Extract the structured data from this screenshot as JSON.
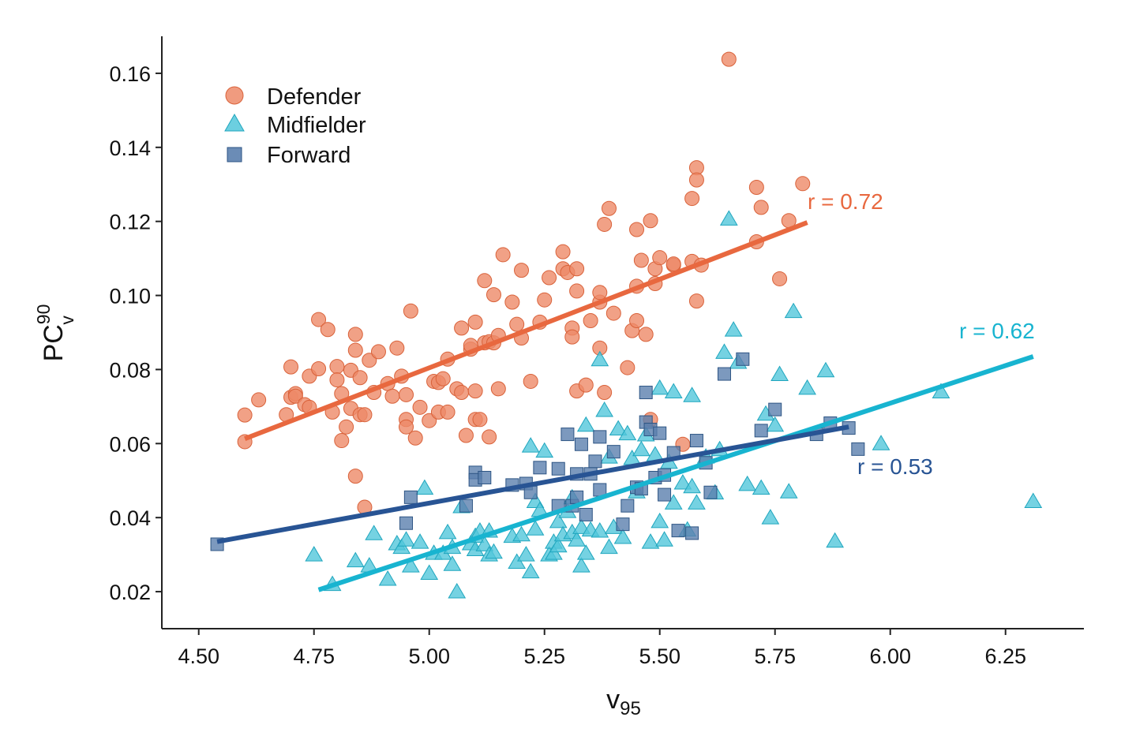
{
  "chart_data": {
    "type": "scatter",
    "title": "",
    "xlabel": "v",
    "xlabel_sub": "95",
    "ylabel": "PC",
    "ylabel_sup": "90",
    "ylabel_sub": "v",
    "xlim": [
      4.42,
      6.42
    ],
    "ylim": [
      0.01,
      0.17
    ],
    "xticks": [
      4.5,
      4.75,
      5.0,
      5.25,
      5.5,
      5.75,
      6.0,
      6.25
    ],
    "xtick_labels": [
      "4.50",
      "4.75",
      "5.00",
      "5.25",
      "5.50",
      "5.75",
      "6.00",
      "6.25"
    ],
    "yticks": [
      0.02,
      0.04,
      0.06,
      0.08,
      0.1,
      0.12,
      0.14,
      0.16
    ],
    "ytick_labels": [
      "0.02",
      "0.04",
      "0.06",
      "0.08",
      "0.10",
      "0.12",
      "0.14",
      "0.16"
    ],
    "grid": false,
    "legend_position": "top-left",
    "series": [
      {
        "name": "Defender",
        "marker": "circle",
        "color": "#ED8A68",
        "line_color": "#E8683F",
        "r_label": "r = 0.72",
        "fit": [
          [
            4.6,
            0.0613
          ],
          [
            5.82,
            0.1197
          ]
        ],
        "points": [
          [
            4.6,
            0.0605
          ],
          [
            4.6,
            0.0677
          ],
          [
            4.63,
            0.0718
          ],
          [
            4.69,
            0.0678
          ],
          [
            4.7,
            0.0725
          ],
          [
            4.7,
            0.0807
          ],
          [
            4.71,
            0.0735
          ],
          [
            4.71,
            0.0728
          ],
          [
            4.73,
            0.0705
          ],
          [
            4.74,
            0.0698
          ],
          [
            4.74,
            0.0782
          ],
          [
            4.76,
            0.0935
          ],
          [
            4.76,
            0.0802
          ],
          [
            4.78,
            0.0908
          ],
          [
            4.79,
            0.0685
          ],
          [
            4.8,
            0.0808
          ],
          [
            4.8,
            0.0772
          ],
          [
            4.81,
            0.0608
          ],
          [
            4.81,
            0.0735
          ],
          [
            4.82,
            0.0645
          ],
          [
            4.83,
            0.0695
          ],
          [
            4.83,
            0.0798
          ],
          [
            4.84,
            0.0852
          ],
          [
            4.84,
            0.0512
          ],
          [
            4.84,
            0.0895
          ],
          [
            4.85,
            0.0778
          ],
          [
            4.85,
            0.0678
          ],
          [
            4.86,
            0.0428
          ],
          [
            4.86,
            0.0678
          ],
          [
            4.87,
            0.0825
          ],
          [
            4.88,
            0.0738
          ],
          [
            4.89,
            0.0848
          ],
          [
            4.91,
            0.0762
          ],
          [
            4.92,
            0.0728
          ],
          [
            4.93,
            0.0858
          ],
          [
            4.94,
            0.0782
          ],
          [
            4.95,
            0.0665
          ],
          [
            4.95,
            0.0645
          ],
          [
            4.95,
            0.0732
          ],
          [
            4.96,
            0.0958
          ],
          [
            4.97,
            0.0615
          ],
          [
            4.98,
            0.0698
          ],
          [
            5.0,
            0.0662
          ],
          [
            5.01,
            0.0768
          ],
          [
            5.02,
            0.0765
          ],
          [
            5.02,
            0.0685
          ],
          [
            5.03,
            0.0775
          ],
          [
            5.04,
            0.0828
          ],
          [
            5.04,
            0.0685
          ],
          [
            5.06,
            0.0748
          ],
          [
            5.07,
            0.0738
          ],
          [
            5.07,
            0.0912
          ],
          [
            5.08,
            0.0622
          ],
          [
            5.09,
            0.0855
          ],
          [
            5.09,
            0.0865
          ],
          [
            5.1,
            0.0928
          ],
          [
            5.1,
            0.0742
          ],
          [
            5.1,
            0.0665
          ],
          [
            5.11,
            0.0665
          ],
          [
            5.12,
            0.0872
          ],
          [
            5.12,
            0.104
          ],
          [
            5.13,
            0.0875
          ],
          [
            5.13,
            0.0618
          ],
          [
            5.14,
            0.1002
          ],
          [
            5.14,
            0.0872
          ],
          [
            5.15,
            0.0892
          ],
          [
            5.15,
            0.0748
          ],
          [
            5.16,
            0.111
          ],
          [
            5.18,
            0.0982
          ],
          [
            5.19,
            0.0922
          ],
          [
            5.2,
            0.0885
          ],
          [
            5.2,
            0.1068
          ],
          [
            5.22,
            0.0768
          ],
          [
            5.24,
            0.0928
          ],
          [
            5.25,
            0.0988
          ],
          [
            5.26,
            0.1048
          ],
          [
            5.29,
            0.1118
          ],
          [
            5.29,
            0.1072
          ],
          [
            5.3,
            0.1062
          ],
          [
            5.31,
            0.0912
          ],
          [
            5.31,
            0.0888
          ],
          [
            5.32,
            0.1012
          ],
          [
            5.32,
            0.0742
          ],
          [
            5.32,
            0.1072
          ],
          [
            5.34,
            0.0758
          ],
          [
            5.35,
            0.0932
          ],
          [
            5.37,
            0.0982
          ],
          [
            5.37,
            0.1008
          ],
          [
            5.37,
            0.0858
          ],
          [
            5.38,
            0.1192
          ],
          [
            5.38,
            0.0738
          ],
          [
            5.39,
            0.1235
          ],
          [
            5.4,
            0.0952
          ],
          [
            5.43,
            0.0805
          ],
          [
            5.44,
            0.0905
          ],
          [
            5.45,
            0.0932
          ],
          [
            5.45,
            0.1025
          ],
          [
            5.45,
            0.1178
          ],
          [
            5.46,
            0.1095
          ],
          [
            5.47,
            0.0895
          ],
          [
            5.48,
            0.1202
          ],
          [
            5.48,
            0.0665
          ],
          [
            5.49,
            0.1072
          ],
          [
            5.49,
            0.1032
          ],
          [
            5.5,
            0.1102
          ],
          [
            5.53,
            0.1082
          ],
          [
            5.53,
            0.1085
          ],
          [
            5.55,
            0.0598
          ],
          [
            5.57,
            0.1262
          ],
          [
            5.57,
            0.1092
          ],
          [
            5.58,
            0.1345
          ],
          [
            5.58,
            0.1312
          ],
          [
            5.58,
            0.0985
          ],
          [
            5.59,
            0.1082
          ],
          [
            5.65,
            0.1638
          ],
          [
            5.71,
            0.1292
          ],
          [
            5.71,
            0.1145
          ],
          [
            5.72,
            0.1238
          ],
          [
            5.76,
            0.1045
          ],
          [
            5.78,
            0.1202
          ],
          [
            5.81,
            0.1302
          ]
        ]
      },
      {
        "name": "Midfielder",
        "marker": "triangle",
        "color": "#52C7DB",
        "line_color": "#18B4D0",
        "r_label": "r = 0.62",
        "fit": [
          [
            4.76,
            0.0205
          ],
          [
            6.31,
            0.0835
          ]
        ],
        "points": [
          [
            4.75,
            0.0298
          ],
          [
            4.79,
            0.0218
          ],
          [
            4.84,
            0.0282
          ],
          [
            4.87,
            0.0268
          ],
          [
            4.88,
            0.0355
          ],
          [
            4.91,
            0.0232
          ],
          [
            4.93,
            0.0328
          ],
          [
            4.94,
            0.0318
          ],
          [
            4.95,
            0.0338
          ],
          [
            4.96,
            0.0268
          ],
          [
            4.98,
            0.0332
          ],
          [
            4.99,
            0.0478
          ],
          [
            5.0,
            0.0248
          ],
          [
            5.01,
            0.0302
          ],
          [
            5.03,
            0.0302
          ],
          [
            5.04,
            0.0358
          ],
          [
            5.05,
            0.0272
          ],
          [
            5.05,
            0.0318
          ],
          [
            5.06,
            0.0198
          ],
          [
            5.07,
            0.0428
          ],
          [
            5.09,
            0.0328
          ],
          [
            5.1,
            0.0348
          ],
          [
            5.1,
            0.0312
          ],
          [
            5.11,
            0.0362
          ],
          [
            5.12,
            0.0325
          ],
          [
            5.13,
            0.0298
          ],
          [
            5.14,
            0.0305
          ],
          [
            5.13,
            0.0362
          ],
          [
            5.18,
            0.0348
          ],
          [
            5.19,
            0.0278
          ],
          [
            5.2,
            0.0352
          ],
          [
            5.21,
            0.0298
          ],
          [
            5.22,
            0.0252
          ],
          [
            5.22,
            0.0592
          ],
          [
            5.23,
            0.0368
          ],
          [
            5.23,
            0.0442
          ],
          [
            5.24,
            0.0418
          ],
          [
            5.25,
            0.0578
          ],
          [
            5.26,
            0.0298
          ],
          [
            5.27,
            0.0332
          ],
          [
            5.27,
            0.0302
          ],
          [
            5.28,
            0.0322
          ],
          [
            5.28,
            0.0388
          ],
          [
            5.29,
            0.0352
          ],
          [
            5.3,
            0.0415
          ],
          [
            5.31,
            0.0358
          ],
          [
            5.31,
            0.0452
          ],
          [
            5.32,
            0.0338
          ],
          [
            5.33,
            0.0268
          ],
          [
            5.33,
            0.0372
          ],
          [
            5.34,
            0.0648
          ],
          [
            5.34,
            0.0302
          ],
          [
            5.35,
            0.0365
          ],
          [
            5.37,
            0.0362
          ],
          [
            5.37,
            0.0825
          ],
          [
            5.38,
            0.0688
          ],
          [
            5.39,
            0.0562
          ],
          [
            5.39,
            0.0318
          ],
          [
            5.4,
            0.0372
          ],
          [
            5.41,
            0.0638
          ],
          [
            5.42,
            0.0345
          ],
          [
            5.43,
            0.0625
          ],
          [
            5.44,
            0.0558
          ],
          [
            5.45,
            0.0468
          ],
          [
            5.46,
            0.0582
          ],
          [
            5.47,
            0.0622
          ],
          [
            5.48,
            0.0332
          ],
          [
            5.49,
            0.0568
          ],
          [
            5.5,
            0.0748
          ],
          [
            5.5,
            0.0388
          ],
          [
            5.51,
            0.0338
          ],
          [
            5.52,
            0.0548
          ],
          [
            5.53,
            0.0738
          ],
          [
            5.53,
            0.0438
          ],
          [
            5.55,
            0.0492
          ],
          [
            5.56,
            0.0365
          ],
          [
            5.57,
            0.0728
          ],
          [
            5.57,
            0.0482
          ],
          [
            5.58,
            0.0438
          ],
          [
            5.6,
            0.0562
          ],
          [
            5.62,
            0.0465
          ],
          [
            5.63,
            0.0582
          ],
          [
            5.64,
            0.0845
          ],
          [
            5.65,
            0.1205
          ],
          [
            5.66,
            0.0905
          ],
          [
            5.67,
            0.0818
          ],
          [
            5.69,
            0.0488
          ],
          [
            5.72,
            0.0478
          ],
          [
            5.73,
            0.0678
          ],
          [
            5.74,
            0.0398
          ],
          [
            5.75,
            0.0648
          ],
          [
            5.76,
            0.0785
          ],
          [
            5.78,
            0.0468
          ],
          [
            5.79,
            0.0955
          ],
          [
            5.82,
            0.0748
          ],
          [
            5.86,
            0.0795
          ],
          [
            5.88,
            0.0335
          ],
          [
            5.98,
            0.0598
          ],
          [
            6.11,
            0.0738
          ],
          [
            6.31,
            0.0442
          ]
        ]
      },
      {
        "name": "Forward",
        "marker": "square",
        "color": "#5B7FAE",
        "line_color": "#285494",
        "r_label": "r = 0.53",
        "fit": [
          [
            4.54,
            0.0335
          ],
          [
            5.91,
            0.0645
          ]
        ],
        "points": [
          [
            4.54,
            0.0328
          ],
          [
            4.95,
            0.0385
          ],
          [
            4.96,
            0.0455
          ],
          [
            5.08,
            0.0432
          ],
          [
            5.1,
            0.0522
          ],
          [
            5.1,
            0.0502
          ],
          [
            5.12,
            0.0508
          ],
          [
            5.18,
            0.0488
          ],
          [
            5.21,
            0.0492
          ],
          [
            5.22,
            0.0468
          ],
          [
            5.24,
            0.0535
          ],
          [
            5.28,
            0.0432
          ],
          [
            5.28,
            0.0532
          ],
          [
            5.3,
            0.0625
          ],
          [
            5.31,
            0.0432
          ],
          [
            5.32,
            0.0455
          ],
          [
            5.32,
            0.0518
          ],
          [
            5.33,
            0.0598
          ],
          [
            5.34,
            0.0408
          ],
          [
            5.35,
            0.0518
          ],
          [
            5.36,
            0.0552
          ],
          [
            5.37,
            0.0618
          ],
          [
            5.37,
            0.0475
          ],
          [
            5.4,
            0.0578
          ],
          [
            5.42,
            0.0382
          ],
          [
            5.43,
            0.0432
          ],
          [
            5.45,
            0.0482
          ],
          [
            5.46,
            0.0478
          ],
          [
            5.47,
            0.0738
          ],
          [
            5.47,
            0.0658
          ],
          [
            5.48,
            0.0638
          ],
          [
            5.49,
            0.0508
          ],
          [
            5.5,
            0.0628
          ],
          [
            5.51,
            0.0515
          ],
          [
            5.51,
            0.0462
          ],
          [
            5.53,
            0.0575
          ],
          [
            5.54,
            0.0365
          ],
          [
            5.57,
            0.0358
          ],
          [
            5.58,
            0.0608
          ],
          [
            5.6,
            0.0548
          ],
          [
            5.61,
            0.0468
          ],
          [
            5.64,
            0.0788
          ],
          [
            5.68,
            0.0828
          ],
          [
            5.72,
            0.0635
          ],
          [
            5.75,
            0.0692
          ],
          [
            5.84,
            0.0625
          ],
          [
            5.87,
            0.0655
          ],
          [
            5.91,
            0.0642
          ],
          [
            5.93,
            0.0585
          ]
        ]
      }
    ]
  }
}
